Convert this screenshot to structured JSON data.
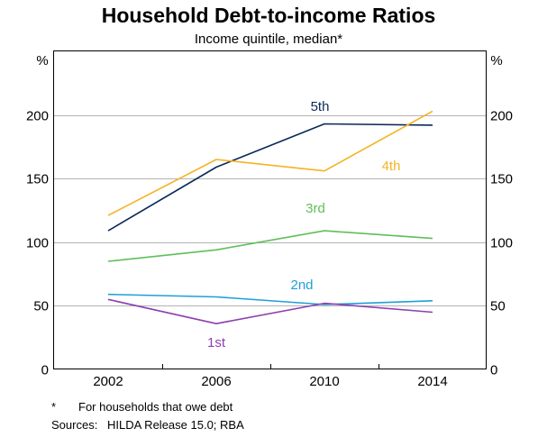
{
  "chart_data": {
    "type": "line",
    "title": "Household Debt-to-income Ratios",
    "subtitle": "Income quintile, median*",
    "y_unit_left": "%",
    "y_unit_right": "%",
    "categories": [
      "2002",
      "2006",
      "2010",
      "2014"
    ],
    "x_ticks": [
      "2002",
      "2006",
      "2010",
      "2014"
    ],
    "ylim": [
      0,
      250
    ],
    "y_ticks": [
      0,
      50,
      100,
      150,
      200
    ],
    "grid": true,
    "series": [
      {
        "name": "5th",
        "color": "#0b2a57",
        "values": [
          109,
          159,
          193,
          192
        ]
      },
      {
        "name": "4th",
        "color": "#f5b324",
        "values": [
          121,
          165,
          156,
          203
        ]
      },
      {
        "name": "3rd",
        "color": "#5fbf58",
        "values": [
          85,
          94,
          109,
          103
        ]
      },
      {
        "name": "2nd",
        "color": "#1ea0d8",
        "values": [
          59,
          57,
          51,
          54
        ]
      },
      {
        "name": "1st",
        "color": "#8e3fae",
        "values": [
          55,
          36,
          52,
          45
        ]
      }
    ]
  },
  "footnotes": {
    "note_mark": "*",
    "note_text": "For households that owe debt",
    "sources_label": "Sources:",
    "sources_text": "HILDA Release 15.0; RBA"
  }
}
